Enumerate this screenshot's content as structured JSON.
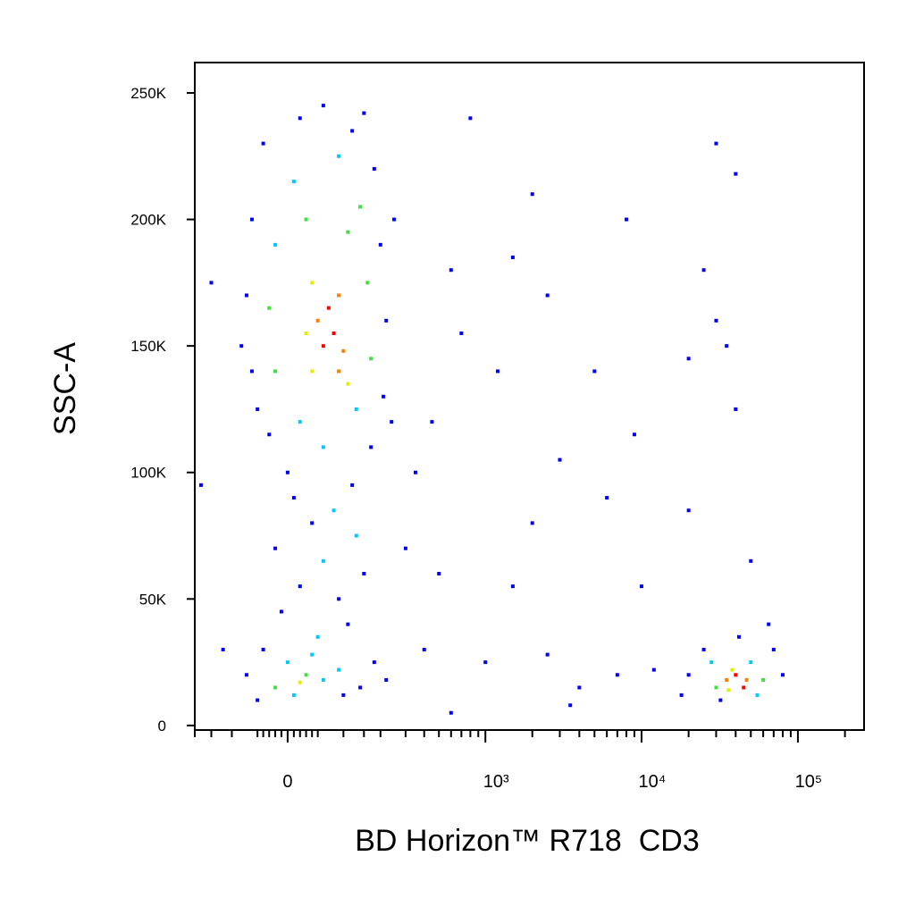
{
  "chart_data": {
    "type": "scatter",
    "x_label": "BD Horizon™ R718  CD3",
    "y_label": "SSC-A",
    "xscale": "biexponential",
    "xscale_width": 109,
    "xlim": [
      -200,
      265000
    ],
    "xticks": [
      0,
      {
        "value": 1000,
        "label": "10³"
      },
      {
        "value": 10000,
        "label": "10⁴"
      },
      {
        "value": 100000,
        "label": "10⁵"
      }
    ],
    "xminorticks": [
      -200,
      -150,
      -100,
      -50,
      -40,
      -30,
      -20,
      -10,
      10,
      20,
      30,
      40,
      50,
      100,
      150,
      200,
      300,
      400,
      500,
      600,
      700,
      800,
      900,
      2000,
      3000,
      4000,
      5000,
      6000,
      7000,
      8000,
      9000,
      20000,
      30000,
      40000,
      50000,
      60000,
      70000,
      80000,
      90000,
      200000
    ],
    "ylim": [
      -1800,
      262000
    ],
    "yticks": [
      0,
      {
        "value": 50000,
        "label": "50K"
      },
      {
        "value": 100000,
        "label": "100K"
      },
      {
        "value": 150000,
        "label": "150K"
      },
      {
        "value": 200000,
        "label": "200K"
      },
      {
        "value": 250000,
        "label": "250K"
      }
    ],
    "x": [
      -40,
      20,
      120,
      180,
      -60,
      200,
      -70,
      220,
      -60,
      210,
      -30,
      170,
      0,
      120,
      250,
      -80,
      150,
      60,
      240,
      -50,
      10,
      90,
      140,
      -20,
      160,
      -30,
      170,
      -20,
      130,
      20,
      60,
      110,
      30,
      40,
      90,
      50,
      80,
      60,
      100,
      40,
      110,
      70,
      30,
      90,
      10,
      80,
      40,
      130,
      -20,
      60,
      150,
      20,
      90,
      -10,
      110,
      50,
      -40,
      0,
      30,
      60,
      -20,
      90,
      140,
      180,
      -70,
      10,
      40,
      100,
      220,
      -50,
      20,
      20000,
      25000,
      30000,
      35000,
      40000,
      45000,
      38000,
      50000,
      60000,
      70000,
      80000,
      28000,
      55000,
      32000,
      42000,
      65000,
      18000,
      47000,
      36000,
      800,
      2000,
      8000,
      30000,
      40000,
      25000,
      30000,
      35000,
      2500,
      1500,
      5000,
      3000,
      600,
      700,
      1200,
      20000,
      40000,
      9000,
      2000,
      6000,
      500,
      1500,
      10000,
      20000,
      50000,
      400,
      1000,
      2500,
      4000,
      7000,
      3500,
      12000,
      600,
      -150,
      -180,
      -120,
      350,
      300,
      450
    ],
    "values": [
      230000,
      240000,
      235000,
      220000,
      200000,
      190000,
      170000,
      160000,
      140000,
      130000,
      115000,
      110000,
      100000,
      95000,
      200000,
      150000,
      242000,
      245000,
      120000,
      125000,
      215000,
      225000,
      205000,
      190000,
      175000,
      165000,
      145000,
      140000,
      125000,
      120000,
      110000,
      195000,
      200000,
      175000,
      170000,
      160000,
      155000,
      150000,
      148000,
      140000,
      135000,
      165000,
      155000,
      140000,
      90000,
      85000,
      80000,
      75000,
      70000,
      65000,
      60000,
      55000,
      50000,
      45000,
      40000,
      35000,
      30000,
      25000,
      20000,
      18000,
      15000,
      22000,
      15000,
      25000,
      20000,
      12000,
      28000,
      12000,
      18000,
      10000,
      17000,
      20000,
      30000,
      15000,
      18000,
      20000,
      15000,
      22000,
      25000,
      18000,
      30000,
      20000,
      25000,
      12000,
      10000,
      35000,
      40000,
      12000,
      18000,
      14000,
      240000,
      210000,
      200000,
      230000,
      218000,
      180000,
      160000,
      150000,
      170000,
      185000,
      140000,
      105000,
      180000,
      155000,
      140000,
      145000,
      125000,
      115000,
      80000,
      90000,
      60000,
      55000,
      55000,
      85000,
      65000,
      30000,
      25000,
      28000,
      15000,
      20000,
      8000,
      22000,
      5000,
      175000,
      95000,
      30000,
      100000,
      70000,
      120000
    ],
    "colors": [
      "#0000ff",
      "#0000ff",
      "#0000ff",
      "#0000ff",
      "#0000ff",
      "#0000ff",
      "#0000ff",
      "#0000ff",
      "#0000ff",
      "#0000ff",
      "#0000ff",
      "#0000ff",
      "#0000ff",
      "#0000ff",
      "#0000ff",
      "#0000ff",
      "#0000ff",
      "#0000ff",
      "#0000ff",
      "#0000ff",
      "#00c8ff",
      "#00c8ff",
      "#40e040",
      "#00c8ff",
      "#40e040",
      "#40e040",
      "#40e040",
      "#40e040",
      "#00c8ff",
      "#00c8ff",
      "#00c8ff",
      "#40e040",
      "#40e040",
      "#e0f000",
      "#ff8000",
      "#ff8000",
      "#ff0000",
      "#ff0000",
      "#ff8000",
      "#e0f000",
      "#e0f000",
      "#ff0000",
      "#e0f000",
      "#ff8000",
      "#0000ff",
      "#00c8ff",
      "#0000ff",
      "#00c8ff",
      "#0000ff",
      "#00c8ff",
      "#0000ff",
      "#0000ff",
      "#0000ff",
      "#0000ff",
      "#0000ff",
      "#00c8ff",
      "#0000ff",
      "#00c8ff",
      "#40e040",
      "#00c8ff",
      "#40e040",
      "#00c8ff",
      "#0000ff",
      "#0000ff",
      "#0000ff",
      "#00c8ff",
      "#00c8ff",
      "#0000ff",
      "#0000ff",
      "#0000ff",
      "#e0f000",
      "#0000ff",
      "#0000ff",
      "#40e040",
      "#ff8000",
      "#ff0000",
      "#ff0000",
      "#e0f000",
      "#00c8ff",
      "#40e040",
      "#0000ff",
      "#0000ff",
      "#00c8ff",
      "#00c8ff",
      "#0000ff",
      "#0000ff",
      "#0000ff",
      "#0000ff",
      "#ff8000",
      "#e0f000",
      "#0000ff",
      "#0000ff",
      "#0000ff",
      "#0000ff",
      "#0000ff",
      "#0000ff",
      "#0000ff",
      "#0000ff",
      "#0000ff",
      "#0000ff",
      "#0000ff",
      "#0000ff",
      "#0000ff",
      "#0000ff",
      "#0000ff",
      "#0000ff",
      "#0000ff",
      "#0000ff",
      "#0000ff",
      "#0000ff",
      "#0000ff",
      "#0000ff",
      "#0000ff",
      "#0000ff",
      "#0000ff",
      "#0000ff",
      "#0000ff",
      "#0000ff",
      "#0000ff",
      "#0000ff",
      "#0000ff",
      "#0000ff",
      "#0000ff",
      "#0000ff",
      "#0000ff",
      "#0000ff",
      "#0000ff",
      "#0000ff",
      "#0000ff"
    ]
  }
}
